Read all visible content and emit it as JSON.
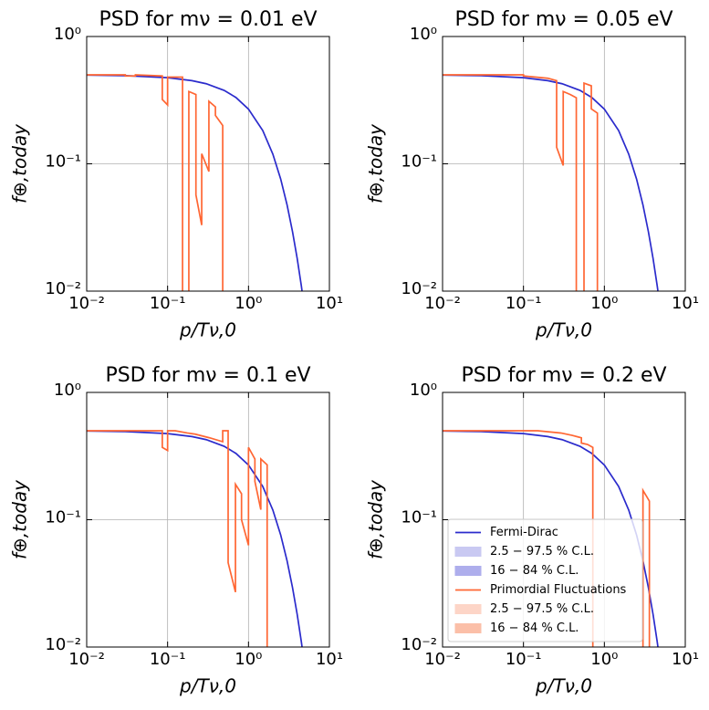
{
  "chart_data": [
    {
      "type": "line",
      "title": "PSD for mν = 0.01 eV",
      "xlabel": "p/Tν,0",
      "ylabel": "f⊕,today",
      "xscale": "log",
      "yscale": "log",
      "grid": true,
      "xlim": [
        0.01,
        10
      ],
      "ylim": [
        0.01,
        1
      ],
      "xticks": [
        {
          "value": 0.01,
          "label": "10⁻²"
        },
        {
          "value": 0.1,
          "label": "10⁻¹"
        },
        {
          "value": 1,
          "label": "10⁰"
        },
        {
          "value": 10,
          "label": "10¹"
        }
      ],
      "yticks": [
        {
          "value": 0.01,
          "label": "10⁻²"
        },
        {
          "value": 0.1,
          "label": "10⁻¹"
        },
        {
          "value": 1,
          "label": "10⁰"
        }
      ],
      "series": [
        {
          "color": "#2b2bcc",
          "x": [
            0.01,
            0.03,
            0.1,
            0.2,
            0.3,
            0.5,
            0.7,
            1,
            1.5,
            2,
            2.5,
            3,
            3.5,
            4,
            4.5,
            5
          ],
          "values": [
            0.4975,
            0.4925,
            0.475,
            0.45,
            0.4256,
            0.3775,
            0.3318,
            0.2689,
            0.1824,
            0.1192,
            0.0759,
            0.0474,
            0.0293,
            0.018,
            0.011,
            0.0067
          ]
        },
        {
          "color": "#ff6633",
          "x": [
            0.01,
            0.03,
            0.03,
            0.04,
            0.04,
            0.086,
            0.086,
            0.1,
            0.1,
            0.153,
            0.153,
            0.153,
            0.183,
            0.183,
            0.224,
            0.224,
            0.264,
            0.264,
            0.324,
            0.324,
            0.39,
            0.39,
            0.48,
            0.48
          ],
          "values": [
            0.5,
            0.5,
            0.49,
            0.49,
            0.5,
            0.49,
            0.32,
            0.29,
            0.48,
            0.48,
            0.01,
            null,
            0.01,
            0.37,
            0.35,
            0.057,
            0.033,
            0.12,
            0.087,
            0.31,
            0.28,
            0.24,
            0.2,
            0.01
          ]
        }
      ]
    },
    {
      "type": "line",
      "title": "PSD for mν = 0.05 eV",
      "xlabel": "p/Tν,0",
      "ylabel": "f⊕,today",
      "xscale": "log",
      "yscale": "log",
      "grid": true,
      "xlim": [
        0.01,
        10
      ],
      "ylim": [
        0.01,
        1
      ],
      "xticks": [
        {
          "value": 0.01,
          "label": "10⁻²"
        },
        {
          "value": 0.1,
          "label": "10⁻¹"
        },
        {
          "value": 1,
          "label": "10⁰"
        },
        {
          "value": 10,
          "label": "10¹"
        }
      ],
      "yticks": [
        {
          "value": 0.01,
          "label": "10⁻²"
        },
        {
          "value": 0.1,
          "label": "10⁻¹"
        },
        {
          "value": 1,
          "label": "10⁰"
        }
      ],
      "series": [
        {
          "color": "#2b2bcc",
          "x": [
            0.01,
            0.03,
            0.1,
            0.2,
            0.3,
            0.5,
            0.7,
            1,
            1.5,
            2,
            2.5,
            3,
            3.5,
            4,
            4.5,
            5
          ],
          "values": [
            0.4975,
            0.4925,
            0.475,
            0.45,
            0.4256,
            0.3775,
            0.3318,
            0.2689,
            0.1824,
            0.1192,
            0.0759,
            0.0474,
            0.0293,
            0.018,
            0.011,
            0.0067
          ]
        },
        {
          "color": "#ff6633",
          "x": [
            0.01,
            0.1,
            0.1,
            0.2,
            0.257,
            0.257,
            0.31,
            0.31,
            0.38,
            0.45,
            0.45,
            0.45,
            0.56,
            0.56,
            0.69,
            0.69,
            0.82,
            0.82
          ],
          "values": [
            0.5,
            0.5,
            0.49,
            0.47,
            0.45,
            0.135,
            0.097,
            0.37,
            0.35,
            0.33,
            0.01,
            null,
            0.01,
            0.43,
            0.41,
            0.27,
            0.25,
            0.01
          ]
        }
      ]
    },
    {
      "type": "line",
      "title": "PSD for mν = 0.1 eV",
      "xlabel": "p/Tν,0",
      "ylabel": "f⊕,today",
      "xscale": "log",
      "yscale": "log",
      "grid": true,
      "xlim": [
        0.01,
        10
      ],
      "ylim": [
        0.01,
        1
      ],
      "xticks": [
        {
          "value": 0.01,
          "label": "10⁻²"
        },
        {
          "value": 0.1,
          "label": "10⁻¹"
        },
        {
          "value": 1,
          "label": "10⁰"
        },
        {
          "value": 10,
          "label": "10¹"
        }
      ],
      "yticks": [
        {
          "value": 0.01,
          "label": "10⁻²"
        },
        {
          "value": 0.1,
          "label": "10⁻¹"
        },
        {
          "value": 1,
          "label": "10⁰"
        }
      ],
      "series": [
        {
          "color": "#2b2bcc",
          "x": [
            0.01,
            0.03,
            0.1,
            0.2,
            0.3,
            0.5,
            0.7,
            1,
            1.5,
            2,
            2.5,
            3,
            3.5,
            4,
            4.5,
            5
          ],
          "values": [
            0.4975,
            0.4925,
            0.475,
            0.45,
            0.4256,
            0.3775,
            0.3318,
            0.2689,
            0.1824,
            0.1192,
            0.0759,
            0.0474,
            0.0293,
            0.018,
            0.011,
            0.0067
          ]
        },
        {
          "color": "#ff6633",
          "x": [
            0.01,
            0.086,
            0.086,
            0.1,
            0.1,
            0.124,
            0.175,
            0.22,
            0.33,
            0.48,
            0.48,
            0.56,
            0.56,
            0.69,
            0.69,
            0.82,
            0.82,
            1.0,
            1.0,
            1.2,
            1.2,
            1.42,
            1.42,
            1.7,
            1.7
          ],
          "values": [
            0.5,
            0.5,
            0.37,
            0.35,
            0.5,
            0.5,
            0.48,
            0.47,
            0.44,
            0.41,
            0.5,
            0.5,
            0.046,
            0.027,
            0.19,
            0.16,
            0.1,
            0.063,
            0.37,
            0.3,
            0.2,
            0.12,
            0.3,
            0.27,
            0.01
          ]
        }
      ]
    },
    {
      "type": "line",
      "title": "PSD for mν = 0.2 eV",
      "xlabel": "p/Tν,0",
      "ylabel": "f⊕,today",
      "xscale": "log",
      "yscale": "log",
      "grid": true,
      "legend": "lower left",
      "xlim": [
        0.01,
        10
      ],
      "ylim": [
        0.01,
        1
      ],
      "xticks": [
        {
          "value": 0.01,
          "label": "10⁻²"
        },
        {
          "value": 0.1,
          "label": "10⁻¹"
        },
        {
          "value": 1,
          "label": "10⁰"
        },
        {
          "value": 10,
          "label": "10¹"
        }
      ],
      "yticks": [
        {
          "value": 0.01,
          "label": "10⁻²"
        },
        {
          "value": 0.1,
          "label": "10⁻¹"
        },
        {
          "value": 1,
          "label": "10⁰"
        }
      ],
      "series": [
        {
          "name": "Fermi-Dirac",
          "color": "#2b2bcc",
          "x": [
            0.01,
            0.03,
            0.1,
            0.2,
            0.3,
            0.5,
            0.7,
            1,
            1.5,
            2,
            2.5,
            3,
            3.5,
            4,
            4.5,
            5
          ],
          "values": [
            0.4975,
            0.4925,
            0.475,
            0.45,
            0.4256,
            0.3775,
            0.3318,
            0.2689,
            0.1824,
            0.1192,
            0.0759,
            0.0474,
            0.0293,
            0.018,
            0.011,
            0.0067
          ],
          "bands": [
            {
              "name": "2.5 − 97.5 % C.L.",
              "color": "#c9c9f2"
            },
            {
              "name": "16 − 84 % C.L.",
              "color": "#aeaeec"
            }
          ]
        },
        {
          "name": "Primordial Fluctuations",
          "color": "#ff6633",
          "x": [
            0.01,
            0.15,
            0.29,
            0.4,
            0.52,
            0.52,
            0.62,
            0.72,
            0.72,
            0.72,
            3.0,
            3.0,
            3.6,
            3.6
          ],
          "values": [
            0.5,
            0.5,
            0.48,
            0.46,
            0.44,
            0.4,
            0.39,
            0.37,
            0.01,
            null,
            0.01,
            0.17,
            0.14,
            0.01
          ],
          "bands": [
            {
              "name": "2.5 − 97.5 % C.L.",
              "color": "#fdd5c7"
            },
            {
              "name": "16 − 84 % C.L.",
              "color": "#fbbfa8"
            }
          ]
        }
      ]
    }
  ]
}
